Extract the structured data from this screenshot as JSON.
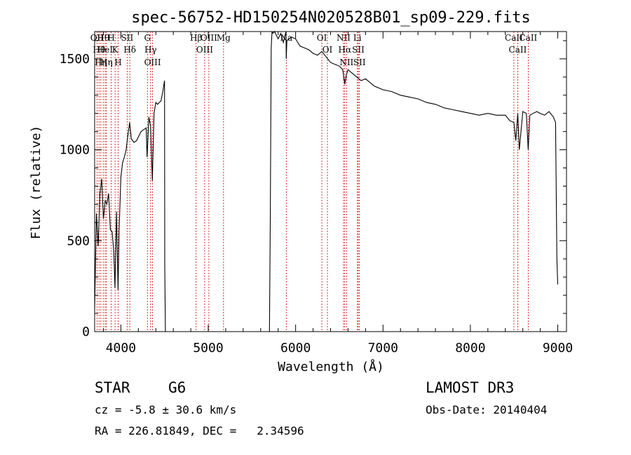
{
  "chart_data": {
    "type": "line",
    "title": "spec-56752-HD150254N020528B01_sp09-229.fits",
    "xlabel": "Wavelength (Å)",
    "ylabel": "Flux (relative)",
    "xlim": [
      3700,
      9100
    ],
    "ylim": [
      0,
      1650
    ],
    "xticks": [
      4000,
      5000,
      6000,
      7000,
      8000,
      9000
    ],
    "yticks": [
      0,
      500,
      1000,
      1500
    ],
    "grid": false,
    "series": [
      {
        "name": "flux",
        "x": [
          3700,
          3720,
          3740,
          3760,
          3780,
          3800,
          3820,
          3840,
          3860,
          3880,
          3900,
          3920,
          3933,
          3950,
          3968,
          3980,
          4000,
          4020,
          4040,
          4060,
          4080,
          4100,
          4120,
          4150,
          4180,
          4200,
          4230,
          4260,
          4290,
          4300,
          4320,
          4340,
          4360,
          4380,
          4400,
          4420,
          4440,
          4460,
          4480,
          4500,
          4502,
          4510,
          4520,
          5700,
          5710,
          5720,
          5730,
          5740,
          5760,
          5780,
          5800,
          5830,
          5860,
          5890,
          5893,
          5900,
          5950,
          6000,
          6050,
          6100,
          6150,
          6200,
          6250,
          6300,
          6350,
          6400,
          6450,
          6500,
          6540,
          6563,
          6580,
          6600,
          6650,
          6700,
          6750,
          6800,
          6900,
          7000,
          7100,
          7200,
          7300,
          7400,
          7500,
          7600,
          7700,
          7800,
          7900,
          8000,
          8100,
          8200,
          8300,
          8400,
          8450,
          8498,
          8520,
          8542,
          8560,
          8600,
          8640,
          8662,
          8680,
          8720,
          8760,
          8800,
          8850,
          8900,
          8950,
          8975,
          8990,
          9000
        ],
        "values": [
          120,
          650,
          470,
          760,
          840,
          620,
          720,
          700,
          760,
          560,
          550,
          430,
          240,
          660,
          230,
          560,
          850,
          930,
          960,
          1000,
          1080,
          1150,
          1060,
          1040,
          1050,
          1070,
          1100,
          1110,
          1120,
          960,
          1180,
          1130,
          830,
          1200,
          1260,
          1250,
          1260,
          1270,
          1320,
          1380,
          360,
          0,
          0,
          0,
          600,
          1560,
          1650,
          1640,
          1660,
          1630,
          1610,
          1640,
          1590,
          1660,
          1500,
          1600,
          1620,
          1610,
          1570,
          1560,
          1550,
          1530,
          1520,
          1540,
          1510,
          1480,
          1470,
          1460,
          1440,
          1360,
          1410,
          1440,
          1420,
          1400,
          1380,
          1390,
          1350,
          1330,
          1320,
          1300,
          1290,
          1280,
          1260,
          1250,
          1230,
          1220,
          1210,
          1200,
          1190,
          1200,
          1190,
          1190,
          1160,
          1150,
          1050,
          1200,
          1000,
          1210,
          1200,
          1000,
          1190,
          1200,
          1210,
          1200,
          1190,
          1210,
          1180,
          1150,
          400,
          260
        ]
      }
    ],
    "lines": [
      {
        "w": 3727,
        "label": "OII"
      },
      {
        "w": 3750,
        "label": "Hθ"
      },
      {
        "w": 3771,
        "label": "Hη"
      },
      {
        "w": 3798,
        "label": "Hθ"
      },
      {
        "w": 3820,
        "label": "HeI"
      },
      {
        "w": 3835,
        "label": "Hη"
      },
      {
        "w": 3889,
        "label": "H"
      },
      {
        "w": 3934,
        "label": "K"
      },
      {
        "w": 3969,
        "label": "H"
      },
      {
        "w": 4072,
        "label": "SII"
      },
      {
        "w": 4102,
        "label": "Hδ"
      },
      {
        "w": 4304,
        "label": "G"
      },
      {
        "w": 4340,
        "label": "Hγ"
      },
      {
        "w": 4363,
        "label": "OIII"
      },
      {
        "w": 4861,
        "label": "Hβ"
      },
      {
        "w": 4959,
        "label": "OIII"
      },
      {
        "w": 5007,
        "label": "OIII"
      },
      {
        "w": 5175,
        "label": "Mg"
      },
      {
        "w": 5893,
        "label": "Na"
      },
      {
        "w": 6300,
        "label": "OI"
      },
      {
        "w": 6364,
        "label": "OI"
      },
      {
        "w": 6548,
        "label": "NII"
      },
      {
        "w": 6563,
        "label": "Hα"
      },
      {
        "w": 6583,
        "label": "NII"
      },
      {
        "w": 6707,
        "label": "Li"
      },
      {
        "w": 6717,
        "label": "SII"
      },
      {
        "w": 6731,
        "label": "SII"
      },
      {
        "w": 8498,
        "label": "CaII"
      },
      {
        "w": 8542,
        "label": "CaII"
      },
      {
        "w": 8662,
        "label": "CaII"
      }
    ]
  },
  "info": {
    "object_class": "STAR",
    "subclass": "G6",
    "survey": "LAMOST DR3",
    "cz": "cz = -5.8 ± 30.6 km/s",
    "obs_date": "Obs-Date: 20140404",
    "coords": "RA = 226.81849, DEC =   2.34596"
  }
}
